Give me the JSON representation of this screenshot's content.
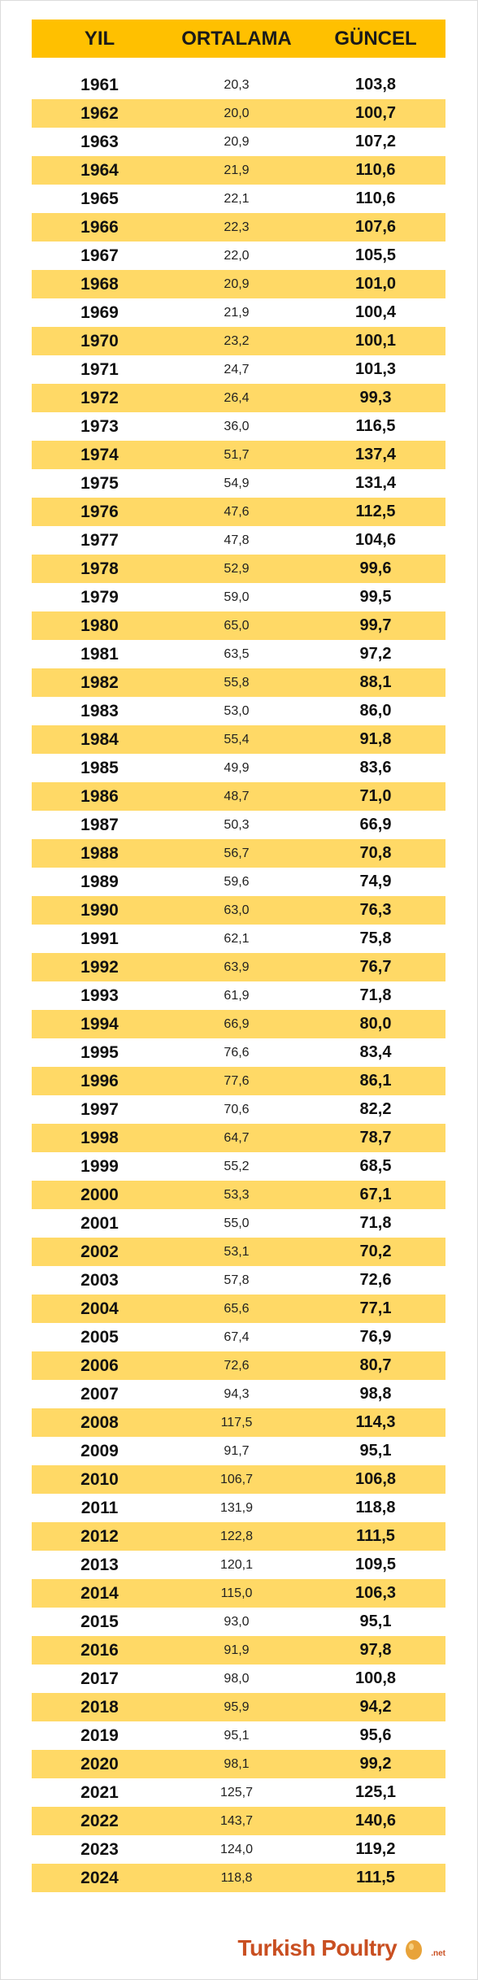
{
  "header": {
    "col1": "YIL",
    "col2": "ORTALAMA",
    "col3": "GÜNCEL"
  },
  "rows": [
    {
      "year": "1961",
      "avg": "20,3",
      "cur": "103,8"
    },
    {
      "year": "1962",
      "avg": "20,0",
      "cur": "100,7"
    },
    {
      "year": "1963",
      "avg": "20,9",
      "cur": "107,2"
    },
    {
      "year": "1964",
      "avg": "21,9",
      "cur": "110,6"
    },
    {
      "year": "1965",
      "avg": "22,1",
      "cur": "110,6"
    },
    {
      "year": "1966",
      "avg": "22,3",
      "cur": "107,6"
    },
    {
      "year": "1967",
      "avg": "22,0",
      "cur": "105,5"
    },
    {
      "year": "1968",
      "avg": "20,9",
      "cur": "101,0"
    },
    {
      "year": "1969",
      "avg": "21,9",
      "cur": "100,4"
    },
    {
      "year": "1970",
      "avg": "23,2",
      "cur": "100,1"
    },
    {
      "year": "1971",
      "avg": "24,7",
      "cur": "101,3"
    },
    {
      "year": "1972",
      "avg": "26,4",
      "cur": "99,3"
    },
    {
      "year": "1973",
      "avg": "36,0",
      "cur": "116,5"
    },
    {
      "year": "1974",
      "avg": "51,7",
      "cur": "137,4"
    },
    {
      "year": "1975",
      "avg": "54,9",
      "cur": "131,4"
    },
    {
      "year": "1976",
      "avg": "47,6",
      "cur": "112,5"
    },
    {
      "year": "1977",
      "avg": "47,8",
      "cur": "104,6"
    },
    {
      "year": "1978",
      "avg": "52,9",
      "cur": "99,6"
    },
    {
      "year": "1979",
      "avg": "59,0",
      "cur": "99,5"
    },
    {
      "year": "1980",
      "avg": "65,0",
      "cur": "99,7"
    },
    {
      "year": "1981",
      "avg": "63,5",
      "cur": "97,2"
    },
    {
      "year": "1982",
      "avg": "55,8",
      "cur": "88,1"
    },
    {
      "year": "1983",
      "avg": "53,0",
      "cur": "86,0"
    },
    {
      "year": "1984",
      "avg": "55,4",
      "cur": "91,8"
    },
    {
      "year": "1985",
      "avg": "49,9",
      "cur": "83,6"
    },
    {
      "year": "1986",
      "avg": "48,7",
      "cur": "71,0"
    },
    {
      "year": "1987",
      "avg": "50,3",
      "cur": "66,9"
    },
    {
      "year": "1988",
      "avg": "56,7",
      "cur": "70,8"
    },
    {
      "year": "1989",
      "avg": "59,6",
      "cur": "74,9"
    },
    {
      "year": "1990",
      "avg": "63,0",
      "cur": "76,3"
    },
    {
      "year": "1991",
      "avg": "62,1",
      "cur": "75,8"
    },
    {
      "year": "1992",
      "avg": "63,9",
      "cur": "76,7"
    },
    {
      "year": "1993",
      "avg": "61,9",
      "cur": "71,8"
    },
    {
      "year": "1994",
      "avg": "66,9",
      "cur": "80,0"
    },
    {
      "year": "1995",
      "avg": "76,6",
      "cur": "83,4"
    },
    {
      "year": "1996",
      "avg": "77,6",
      "cur": "86,1"
    },
    {
      "year": "1997",
      "avg": "70,6",
      "cur": "82,2"
    },
    {
      "year": "1998",
      "avg": "64,7",
      "cur": "78,7"
    },
    {
      "year": "1999",
      "avg": "55,2",
      "cur": "68,5"
    },
    {
      "year": "2000",
      "avg": "53,3",
      "cur": "67,1"
    },
    {
      "year": "2001",
      "avg": "55,0",
      "cur": "71,8"
    },
    {
      "year": "2002",
      "avg": "53,1",
      "cur": "70,2"
    },
    {
      "year": "2003",
      "avg": "57,8",
      "cur": "72,6"
    },
    {
      "year": "2004",
      "avg": "65,6",
      "cur": "77,1"
    },
    {
      "year": "2005",
      "avg": "67,4",
      "cur": "76,9"
    },
    {
      "year": "2006",
      "avg": "72,6",
      "cur": "80,7"
    },
    {
      "year": "2007",
      "avg": "94,3",
      "cur": "98,8"
    },
    {
      "year": "2008",
      "avg": "117,5",
      "cur": "114,3"
    },
    {
      "year": "2009",
      "avg": "91,7",
      "cur": "95,1"
    },
    {
      "year": "2010",
      "avg": "106,7",
      "cur": "106,8"
    },
    {
      "year": "2011",
      "avg": "131,9",
      "cur": "118,8"
    },
    {
      "year": "2012",
      "avg": "122,8",
      "cur": "111,5"
    },
    {
      "year": "2013",
      "avg": "120,1",
      "cur": "109,5"
    },
    {
      "year": "2014",
      "avg": "115,0",
      "cur": "106,3"
    },
    {
      "year": "2015",
      "avg": "93,0",
      "cur": "95,1"
    },
    {
      "year": "2016",
      "avg": "91,9",
      "cur": "97,8"
    },
    {
      "year": "2017",
      "avg": "98,0",
      "cur": "100,8"
    },
    {
      "year": "2018",
      "avg": "95,9",
      "cur": "94,2"
    },
    {
      "year": "2019",
      "avg": "95,1",
      "cur": "95,6"
    },
    {
      "year": "2020",
      "avg": "98,1",
      "cur": "99,2"
    },
    {
      "year": "2021",
      "avg": "125,7",
      "cur": "125,1"
    },
    {
      "year": "2022",
      "avg": "143,7",
      "cur": "140,6"
    },
    {
      "year": "2023",
      "avg": "124,0",
      "cur": "119,2"
    },
    {
      "year": "2024",
      "avg": "118,8",
      "cur": "111,5"
    }
  ],
  "colors": {
    "header_bg": "#ffc000",
    "alt_row_bg": "#ffd966",
    "brand": "#c94f21"
  },
  "logo": {
    "text": "Turkish Poultry",
    "suffix": ".net"
  }
}
